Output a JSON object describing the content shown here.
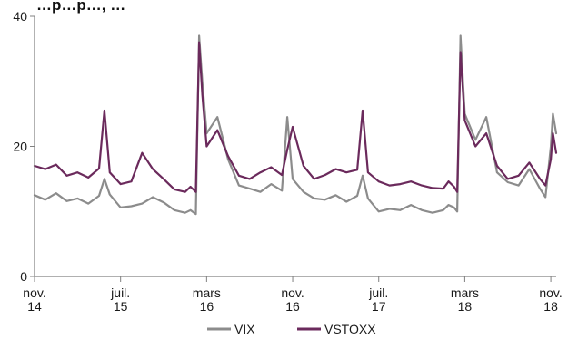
{
  "header_fragment": "…p…p…, …",
  "chart_data": {
    "type": "line",
    "title": "",
    "xlabel": "",
    "ylabel": "",
    "ylim": [
      0,
      40
    ],
    "yticks": [
      0,
      20,
      40
    ],
    "x_ticks": [
      {
        "label": [
          "nov.",
          "14"
        ],
        "t": 0
      },
      {
        "label": [
          "juil.",
          "15"
        ],
        "t": 8
      },
      {
        "label": [
          "mars",
          "16"
        ],
        "t": 16
      },
      {
        "label": [
          "nov.",
          "16"
        ],
        "t": 24
      },
      {
        "label": [
          "juil.",
          "17"
        ],
        "t": 32
      },
      {
        "label": [
          "mars",
          "18"
        ],
        "t": 40
      },
      {
        "label": [
          "nov.",
          "18"
        ],
        "t": 48
      }
    ],
    "legend_position": "bottom",
    "series": [
      {
        "name": "VIX",
        "color": "#8c8c8c",
        "x": [
          0,
          1,
          2,
          3,
          4,
          5,
          6,
          6.5,
          7,
          8,
          9,
          10,
          11,
          12,
          13,
          14,
          14.5,
          15,
          15.3,
          15.6,
          16,
          17,
          18,
          19,
          20,
          21,
          22,
          23,
          23.5,
          24,
          25,
          26,
          27,
          28,
          29,
          30,
          30.5,
          31,
          32,
          33,
          34,
          35,
          36,
          37,
          38,
          38.5,
          39,
          39.3,
          39.6,
          40,
          41,
          42,
          43,
          44,
          45,
          46,
          47,
          47.5,
          48,
          48.2,
          48.5
        ],
        "values": [
          12.5,
          11.8,
          12.8,
          11.6,
          12.0,
          11.2,
          12.4,
          15.0,
          12.6,
          10.6,
          10.8,
          11.2,
          12.2,
          11.4,
          10.2,
          9.8,
          10.2,
          9.6,
          37.0,
          30.0,
          22.0,
          24.5,
          18.0,
          14.0,
          13.5,
          13.0,
          14.2,
          13.2,
          24.5,
          15.0,
          13.0,
          12.0,
          11.8,
          12.5,
          11.5,
          12.4,
          15.5,
          12.0,
          10.0,
          10.4,
          10.2,
          11.0,
          10.2,
          9.8,
          10.2,
          11.0,
          10.6,
          10.0,
          37.0,
          25.0,
          21.0,
          24.5,
          16.0,
          14.5,
          14.0,
          16.5,
          13.5,
          12.2,
          20.0,
          25.0,
          22.0
        ]
      },
      {
        "name": "VSTOXX",
        "color": "#6b2a5c",
        "x": [
          0,
          1,
          2,
          3,
          4,
          5,
          6,
          6.5,
          7,
          8,
          9,
          10,
          11,
          12,
          13,
          14,
          14.5,
          15,
          15.3,
          15.6,
          16,
          17,
          18,
          19,
          20,
          21,
          22,
          23,
          23.5,
          24,
          25,
          26,
          27,
          28,
          29,
          30,
          30.5,
          31,
          32,
          33,
          34,
          35,
          36,
          37,
          38,
          38.5,
          39,
          39.3,
          39.6,
          40,
          41,
          42,
          43,
          44,
          45,
          46,
          47,
          47.5,
          48,
          48.2,
          48.5
        ],
        "values": [
          17.0,
          16.5,
          17.2,
          15.5,
          16.0,
          15.2,
          16.6,
          25.5,
          16.0,
          14.2,
          14.6,
          19.0,
          16.5,
          15.0,
          13.4,
          13.0,
          13.8,
          13.0,
          36.0,
          28.0,
          20.0,
          22.5,
          18.5,
          15.5,
          15.0,
          16.0,
          16.8,
          15.6,
          19.5,
          23.0,
          17.0,
          15.0,
          15.6,
          16.5,
          16.0,
          16.4,
          25.5,
          16.0,
          14.6,
          14.0,
          14.2,
          14.6,
          14.0,
          13.6,
          13.5,
          14.6,
          13.8,
          13.0,
          34.5,
          24.0,
          20.0,
          22.0,
          17.0,
          15.0,
          15.5,
          17.5,
          15.0,
          14.0,
          18.0,
          22.0,
          19.0
        ]
      }
    ]
  }
}
